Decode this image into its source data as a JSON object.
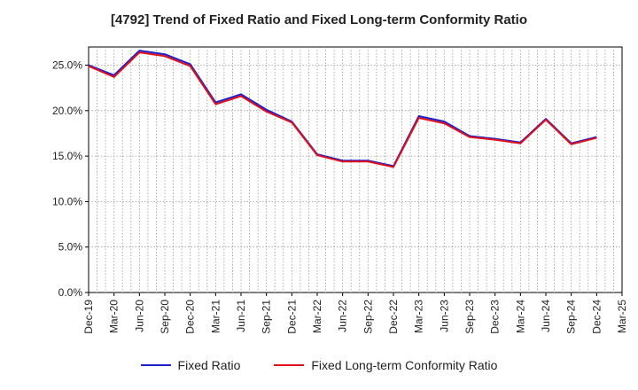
{
  "chart_data": {
    "type": "line",
    "title": "[4792]  Trend of Fixed Ratio and Fixed Long-term Conformity Ratio",
    "xlabel": "",
    "ylabel": "",
    "ylim": [
      0,
      27
    ],
    "y_ticks": [
      0,
      5,
      10,
      15,
      20,
      25
    ],
    "y_tick_labels": [
      "0.0%",
      "5.0%",
      "10.0%",
      "15.0%",
      "20.0%",
      "25.0%"
    ],
    "categories": [
      "Dec-19",
      "Mar-20",
      "Jun-20",
      "Sep-20",
      "Dec-20",
      "Mar-21",
      "Jun-21",
      "Sep-21",
      "Dec-21",
      "Mar-22",
      "Jun-22",
      "Sep-22",
      "Dec-22",
      "Mar-23",
      "Jun-23",
      "Sep-23",
      "Dec-23",
      "Mar-24",
      "Jun-24",
      "Sep-24",
      "Dec-24",
      "Mar-25"
    ],
    "grid": true,
    "legend_position": "bottom",
    "series": [
      {
        "name": "Fixed Ratio",
        "color": "#1f1fcc",
        "values": [
          25.0,
          23.9,
          26.6,
          26.2,
          25.1,
          20.9,
          21.8,
          20.1,
          18.8,
          15.2,
          14.5,
          14.5,
          13.9,
          19.4,
          18.8,
          17.2,
          16.9,
          16.5,
          19.1,
          16.4,
          17.1,
          null
        ]
      },
      {
        "name": "Fixed Long-term Conformity Ratio",
        "color": "#e0101a",
        "values": [
          24.9,
          23.7,
          26.4,
          26.0,
          24.9,
          20.7,
          21.6,
          19.9,
          18.7,
          15.1,
          14.4,
          14.4,
          13.8,
          19.2,
          18.6,
          17.1,
          16.8,
          16.4,
          19.0,
          16.3,
          17.0,
          null
        ]
      }
    ]
  }
}
